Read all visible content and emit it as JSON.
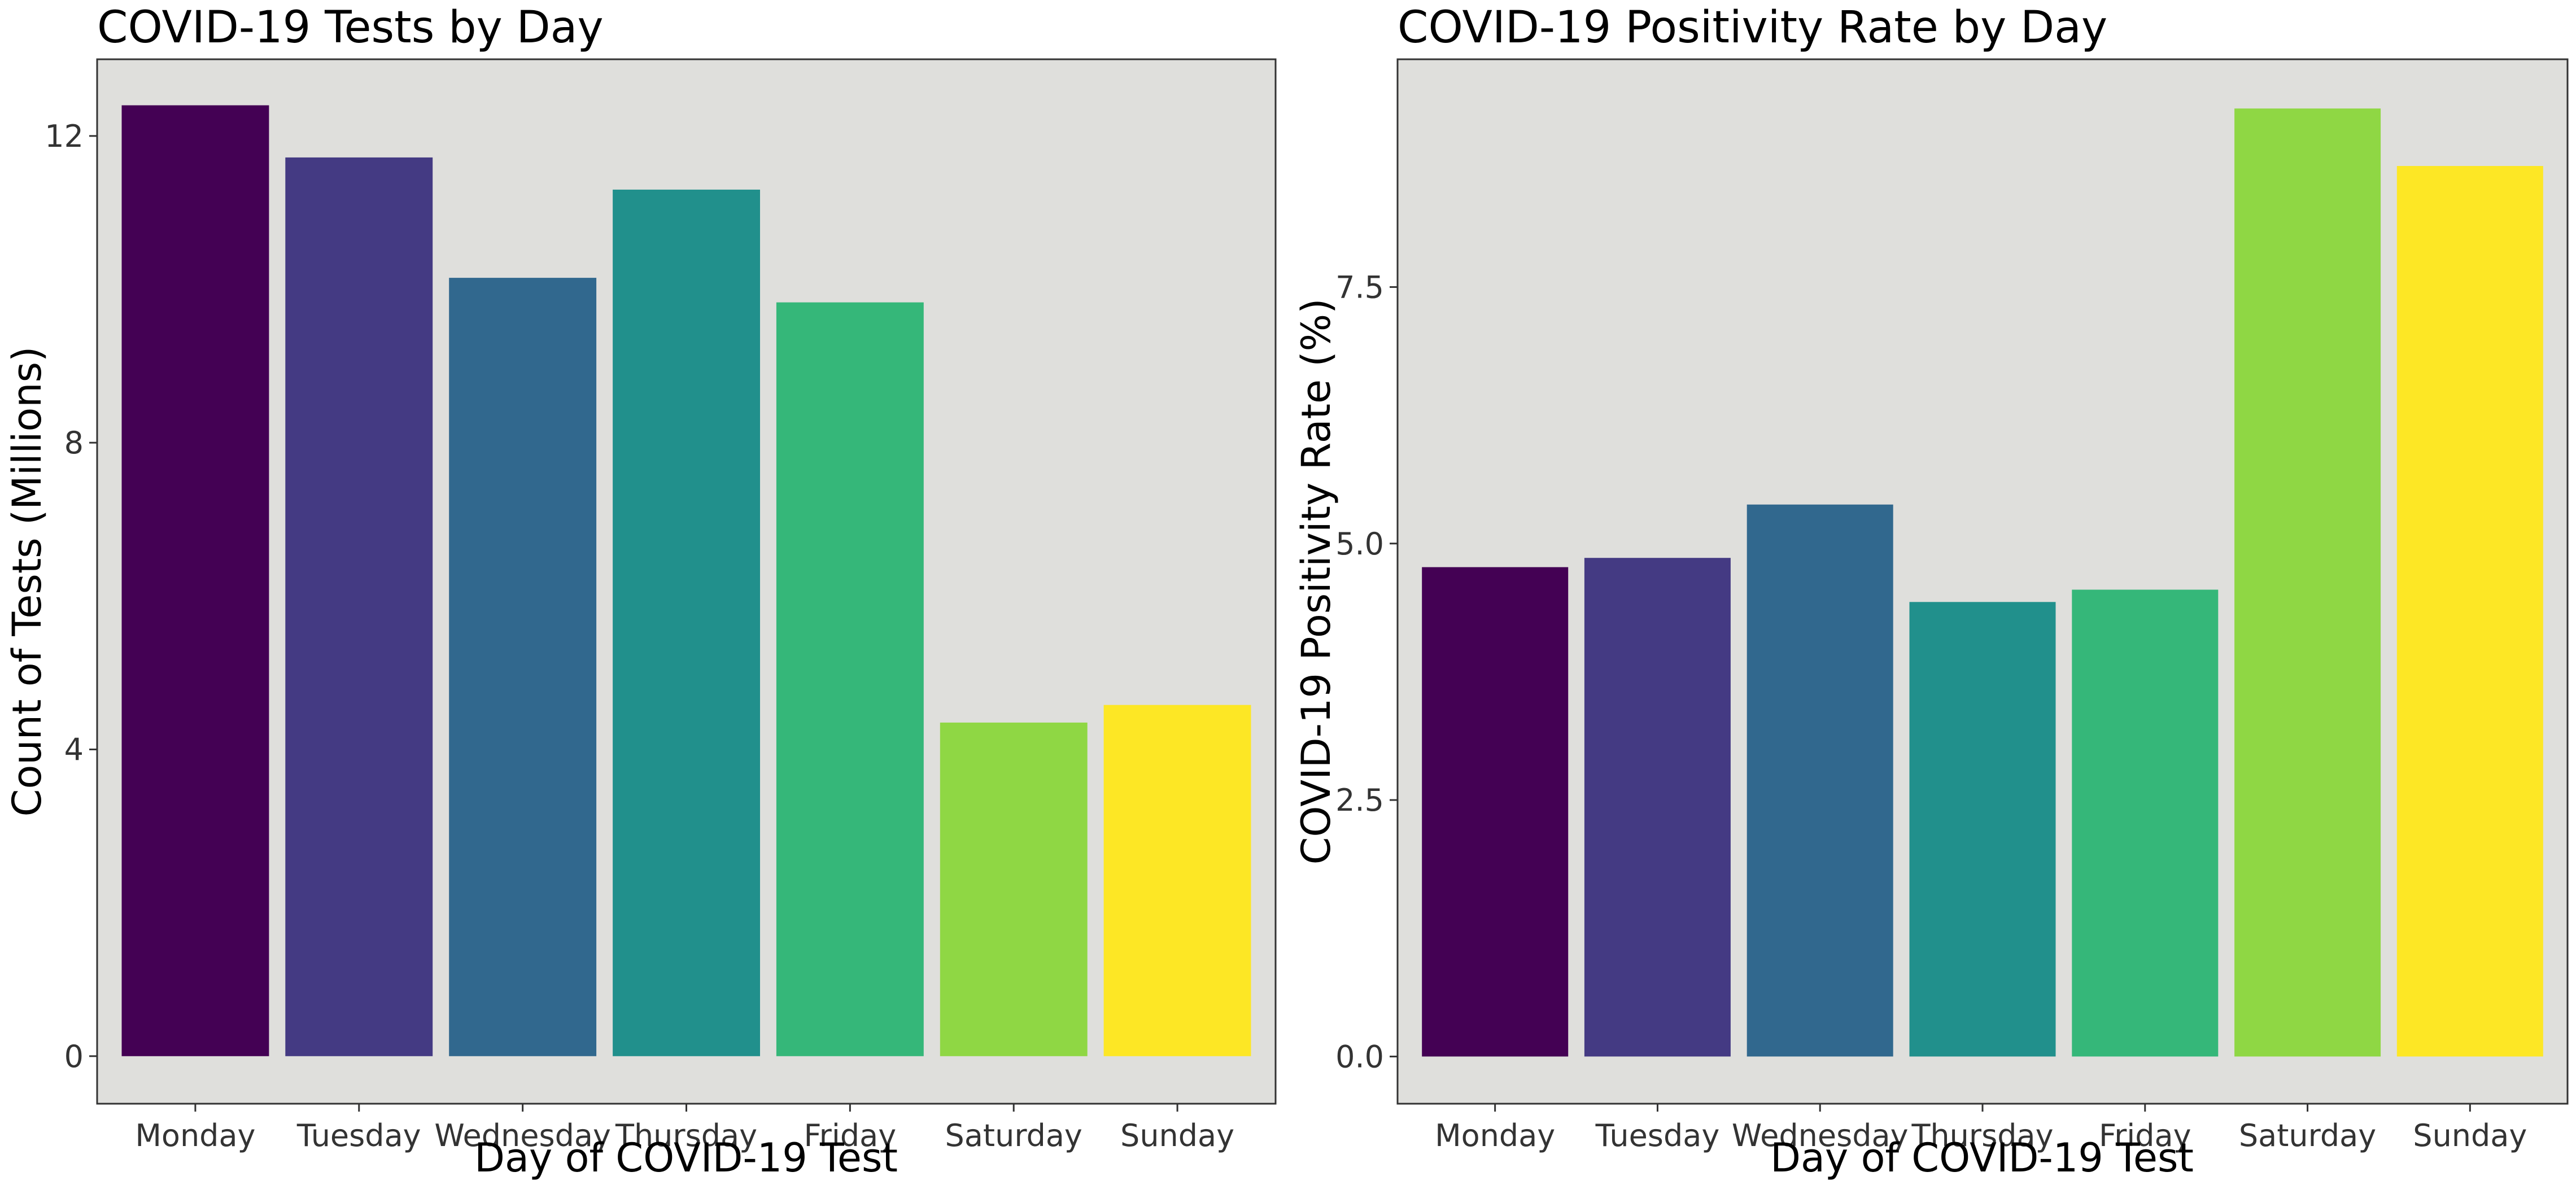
{
  "chart_data": [
    {
      "type": "bar",
      "title": "COVID-19 Tests by Day",
      "xlabel": "Day of COVID-19 Test",
      "ylabel": "Count of Tests (Millions)",
      "categories": [
        "Monday",
        "Tuesday",
        "Wednesday",
        "Thursday",
        "Friday",
        "Saturday",
        "Sunday"
      ],
      "values": [
        12.4,
        11.72,
        10.15,
        11.3,
        9.83,
        4.35,
        4.58
      ],
      "colors": [
        "#440154",
        "#443a83",
        "#31688e",
        "#21908c",
        "#35b779",
        "#8fd744",
        "#fde725"
      ],
      "ylim": [
        -0.62,
        13.0
      ],
      "yticks": [
        0,
        4,
        8,
        12
      ],
      "ytick_labels": [
        "0",
        "4",
        "8",
        "12"
      ],
      "grid": false,
      "legend": "none",
      "panel_background": "#dfdfdc"
    },
    {
      "type": "bar",
      "title": "COVID-19 Positivity Rate by Day",
      "xlabel": "Day of COVID-19 Test",
      "ylabel": "COVID-19 Positivity Rate (%)",
      "categories": [
        "Monday",
        "Tuesday",
        "Wednesday",
        "Thursday",
        "Friday",
        "Saturday",
        "Sunday"
      ],
      "values": [
        4.77,
        4.86,
        5.38,
        4.43,
        4.55,
        9.24,
        8.68
      ],
      "colors": [
        "#440154",
        "#443a83",
        "#31688e",
        "#21908c",
        "#35b779",
        "#8fd744",
        "#fde725"
      ],
      "ylim": [
        -0.46,
        9.72
      ],
      "yticks": [
        0,
        2.5,
        5,
        7.5
      ],
      "ytick_labels": [
        "0.0",
        "2.5",
        "5.0",
        "7.5"
      ],
      "grid": false,
      "legend": "none",
      "panel_background": "#dfdfdc"
    }
  ]
}
